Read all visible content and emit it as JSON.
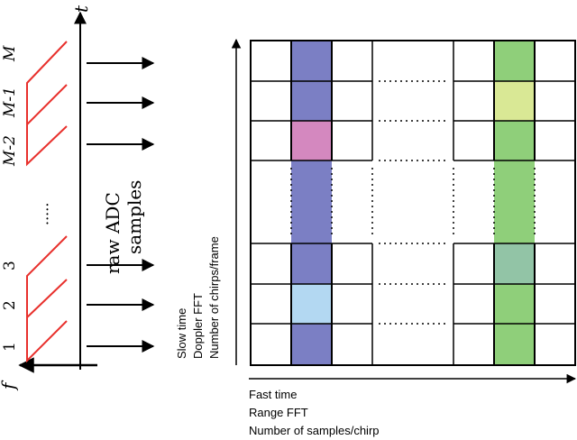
{
  "chirp_panel": {
    "axis_f_label": "f",
    "axis_t_label": "t",
    "chirp_labels": [
      "1",
      "2",
      "3",
      "M-2",
      "M-1",
      "M"
    ],
    "ellipsis": "·····",
    "raw_adc_text": "raw ADC",
    "samples_text": "samples"
  },
  "grid_panel": {
    "x_labels": [
      "Fast time",
      "Range FFT",
      "Number of samples/chirp"
    ],
    "y_labels": [
      "Slow time",
      "Doppler FFT",
      "Number of chirps/frame"
    ],
    "colors": {
      "blue_column": "#7b7fc4",
      "green_column": "#8fcf7a",
      "pink_cell": "#d488bf",
      "lightblue_cell": "#b3d8f2",
      "yellow_cell": "#d9e895",
      "teal_cell": "#92c4a6",
      "chirp_red": "#e8302c"
    }
  }
}
